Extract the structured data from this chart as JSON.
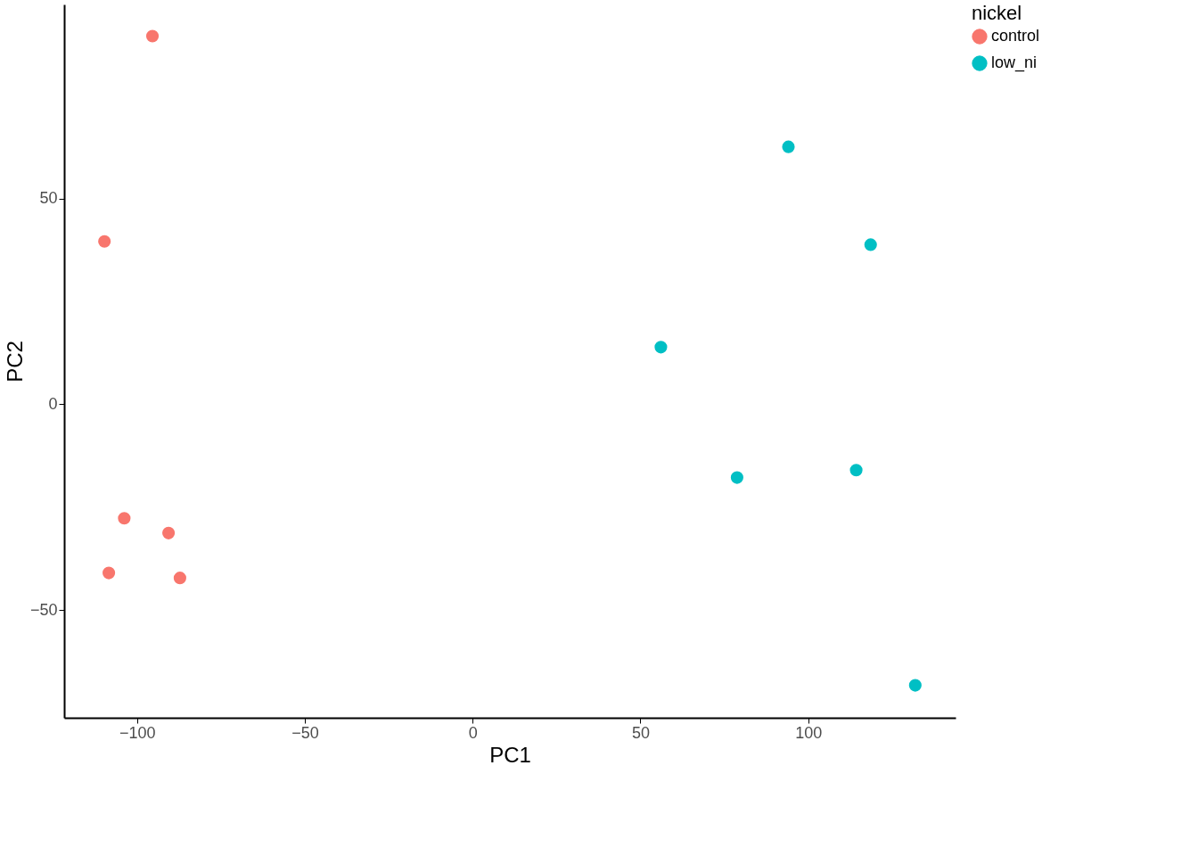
{
  "chart_data": {
    "type": "scatter",
    "xlabel": "PC1",
    "ylabel": "PC2",
    "legend_title": "nickel",
    "xlim": [
      -121.7,
      143.9
    ],
    "ylim": [
      -76.2,
      97.2
    ],
    "xticks": [
      -100,
      -50,
      0,
      50,
      100
    ],
    "yticks": [
      -50,
      0,
      50
    ],
    "grid": false,
    "legend": "right",
    "marker": "circle",
    "series": [
      {
        "name": "control",
        "color": "#f8766d",
        "x": [
          -95.4,
          -109.7,
          -103.8,
          -90.6,
          -108.4,
          -87.2
        ],
        "values": [
          89.5,
          39.6,
          -27.7,
          -31.3,
          -41.0,
          -42.2
        ]
      },
      {
        "name": "low_ni",
        "color": "#00bfc4",
        "x": [
          94.1,
          118.6,
          56.1,
          78.8,
          114.3,
          131.9
        ],
        "values": [
          62.6,
          38.8,
          13.9,
          -17.8,
          -16.0,
          -68.3
        ]
      }
    ]
  }
}
